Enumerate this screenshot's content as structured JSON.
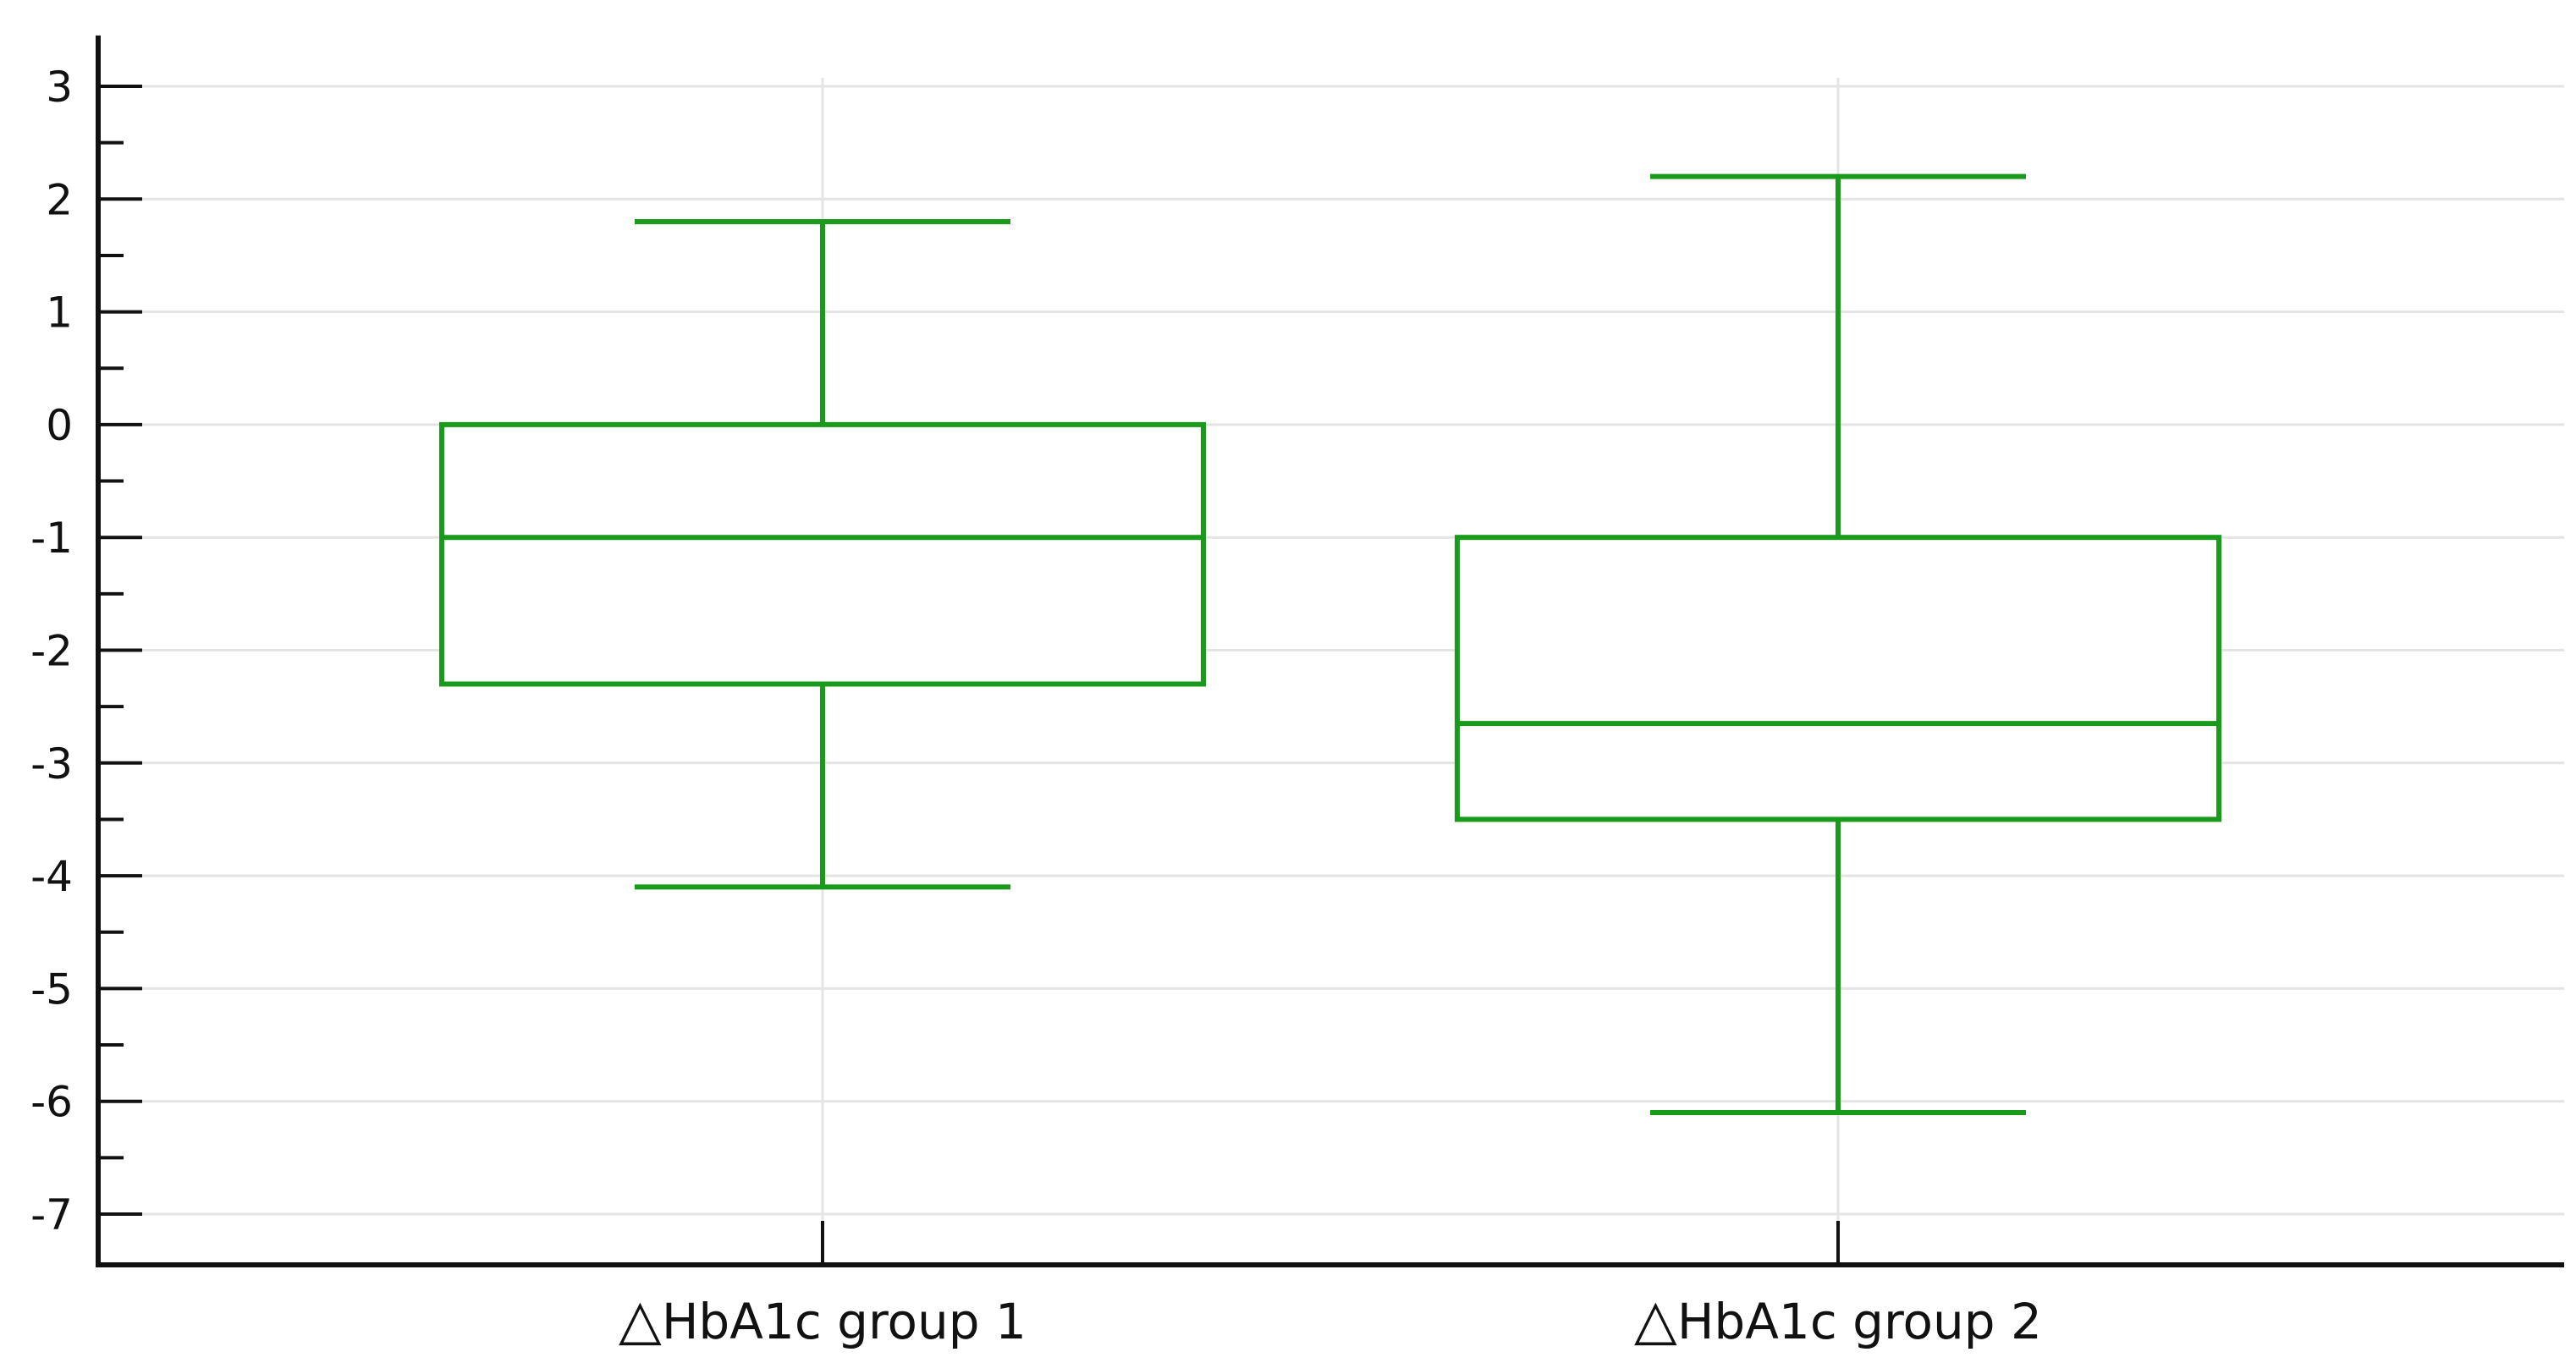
{
  "chart_data": {
    "type": "box",
    "categories": [
      "HbA1c group 1",
      "HbA1c group 2"
    ],
    "category_prefix_symbol": "△",
    "boxes": [
      {
        "whisker_low": -4.1,
        "q1": -2.3,
        "median": -1.0,
        "q3": 0.0,
        "whisker_high": 1.8
      },
      {
        "whisker_low": -6.1,
        "q1": -3.5,
        "median": -2.65,
        "q3": -1.0,
        "whisker_high": 2.2
      }
    ],
    "ylim": [
      -7.45,
      3.45
    ],
    "yticks": [
      3,
      2,
      1,
      0,
      -1,
      -2,
      -3,
      -4,
      -5,
      -6,
      -7
    ],
    "ytick_labels": [
      "3",
      "2",
      "1",
      "0",
      "-1",
      "-2",
      "-3",
      "-4",
      "-5",
      "-6",
      "-7"
    ],
    "minor_tick_step": 0.5,
    "grid": true,
    "colors": {
      "box": "#1a9a1a",
      "grid": "#e4e4e4",
      "axis": "#111111"
    },
    "title": "",
    "xlabel": "",
    "ylabel": ""
  }
}
